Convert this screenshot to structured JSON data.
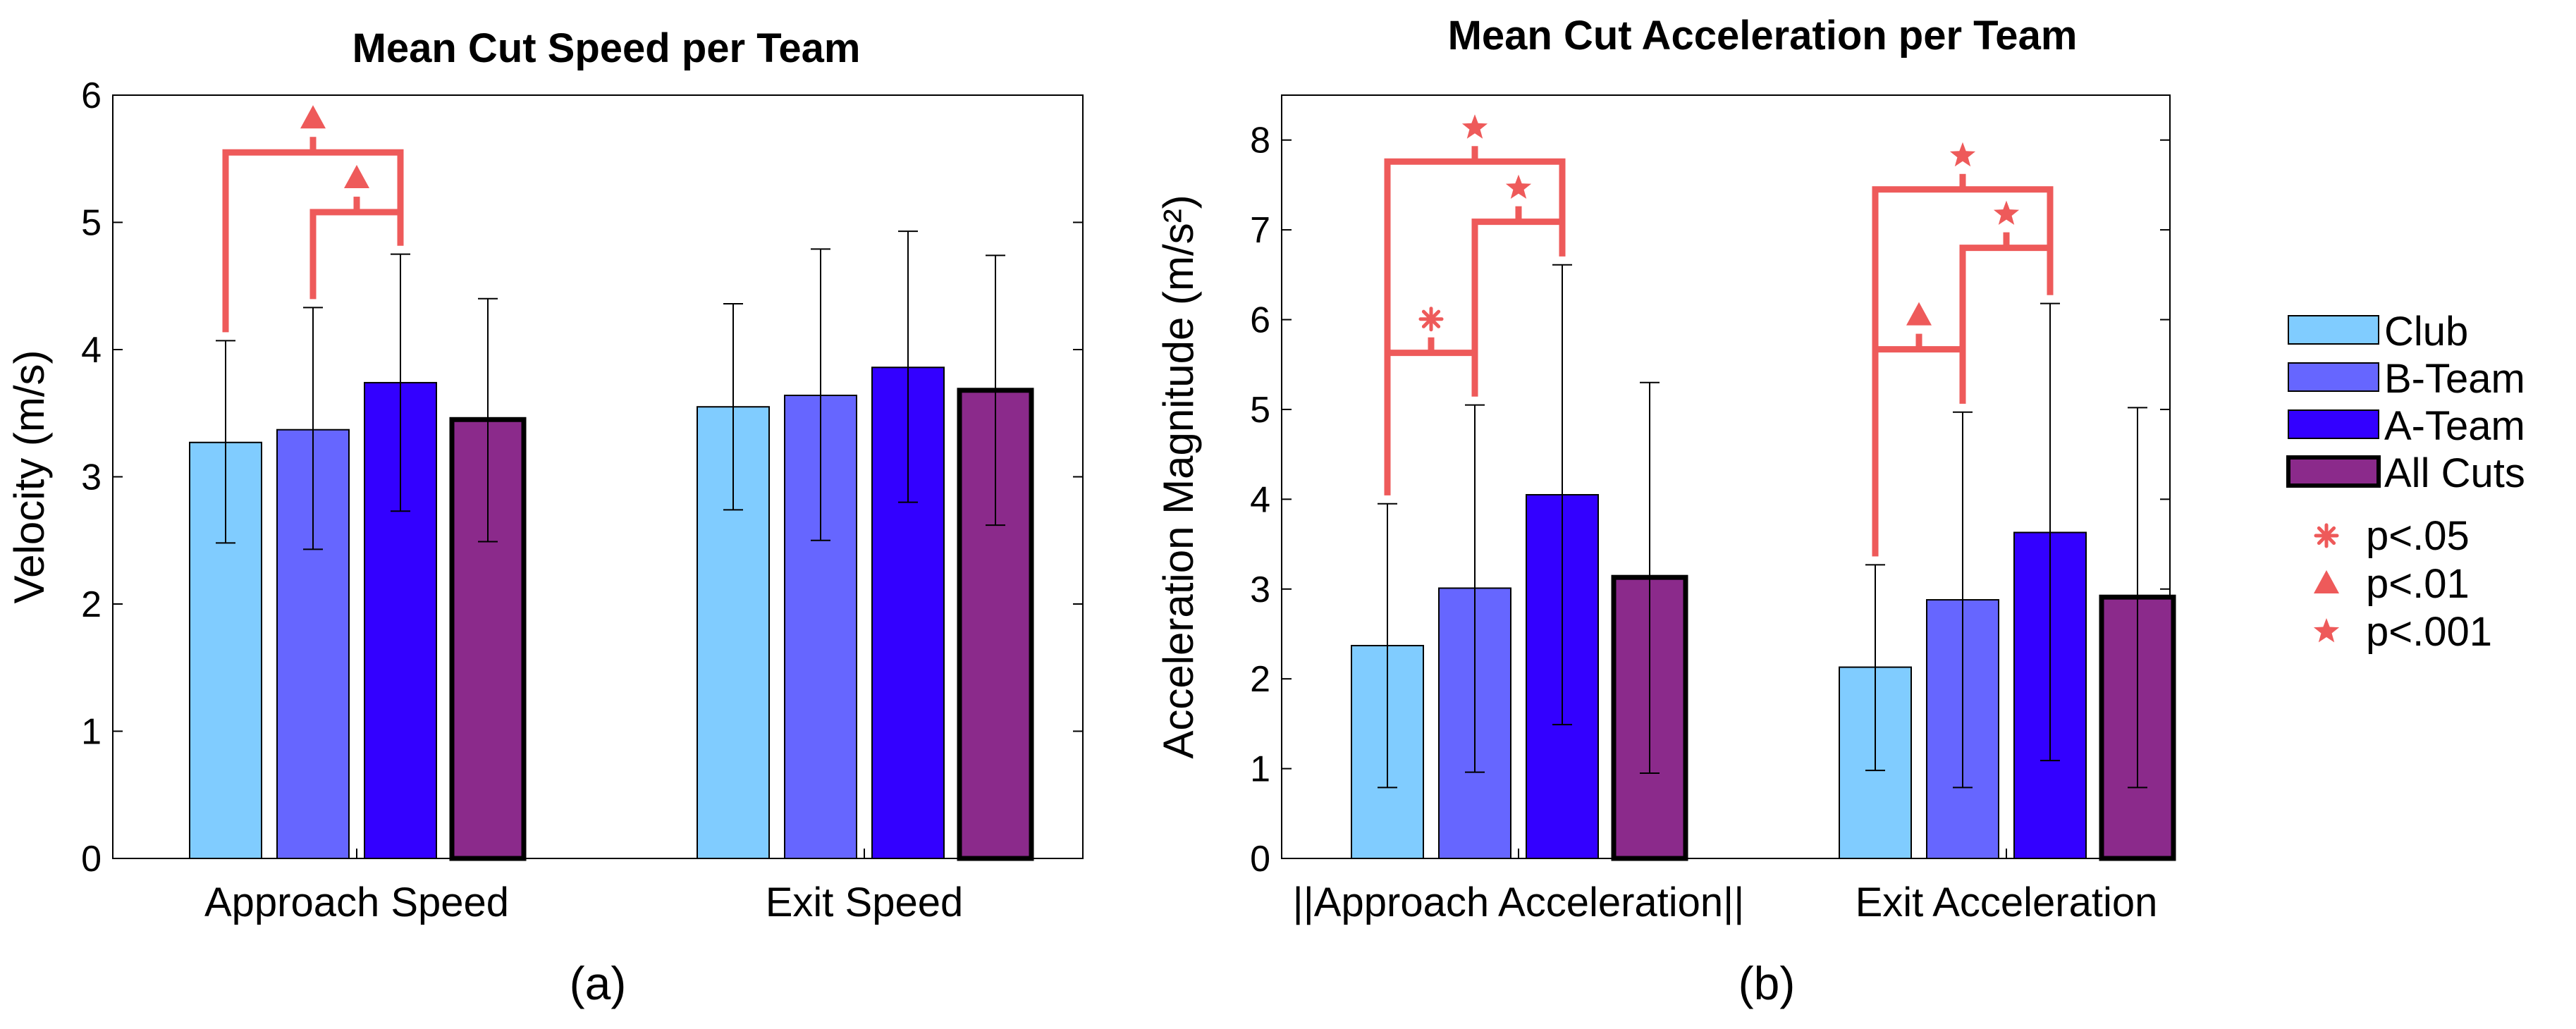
{
  "chart_data": [
    {
      "id": "a",
      "type": "bar",
      "title": "Mean Cut Speed per Team",
      "ylabel": "Velocity (m/s)",
      "xlabel": "",
      "ylim": [
        0,
        6
      ],
      "yticks": [
        0,
        1,
        2,
        3,
        4,
        5,
        6
      ],
      "ytick_labels": [
        "0",
        "1",
        "2",
        "3",
        "4",
        "5",
        "6"
      ],
      "subfigure_label": "(a)",
      "categories": [
        "Approach Speed",
        "Exit Speed"
      ],
      "series": [
        {
          "name": "Club",
          "color": "#80CCFF",
          "values": [
            3.27,
            3.55
          ],
          "err_low": [
            2.48,
            2.74
          ],
          "err_high": [
            4.07,
            4.36
          ]
        },
        {
          "name": "B-Team",
          "color": "#6666FF",
          "values": [
            3.37,
            3.64
          ],
          "err_low": [
            2.43,
            2.5
          ],
          "err_high": [
            4.33,
            4.79
          ]
        },
        {
          "name": "A-Team",
          "color": "#3300FF",
          "values": [
            3.74,
            3.86
          ],
          "err_low": [
            2.73,
            2.8
          ],
          "err_high": [
            4.75,
            4.93
          ]
        },
        {
          "name": "All Cuts",
          "color": "#8B2A8B",
          "values": [
            3.45,
            3.68
          ],
          "err_low": [
            2.49,
            2.62
          ],
          "err_high": [
            4.4,
            4.74
          ]
        }
      ],
      "significance": [
        {
          "category": 0,
          "from": 0,
          "to": 2,
          "symbol": "triangle",
          "level": 5.55
        },
        {
          "category": 0,
          "from": 1,
          "to": 2,
          "symbol": "triangle",
          "level": 5.08
        }
      ]
    },
    {
      "id": "b",
      "type": "bar",
      "title": "Mean Cut Acceleration per Team",
      "ylabel": "Acceleration Magnitude (m/s²)",
      "xlabel": "",
      "ylim": [
        0,
        8.5
      ],
      "yticks": [
        0,
        1,
        2,
        3,
        4,
        5,
        6,
        7,
        8
      ],
      "ytick_labels": [
        "0",
        "1",
        "2",
        "3",
        "4",
        "5",
        "6",
        "7",
        "8"
      ],
      "subfigure_label": "(b)",
      "categories": [
        "||Approach Acceleration||",
        "Exit Acceleration"
      ],
      "series": [
        {
          "name": "Club",
          "color": "#80CCFF",
          "values": [
            2.37,
            2.13
          ],
          "err_low": [
            0.79,
            0.98
          ],
          "err_high": [
            3.95,
            3.27
          ]
        },
        {
          "name": "B-Team",
          "color": "#6666FF",
          "values": [
            3.01,
            2.88
          ],
          "err_low": [
            0.96,
            0.79
          ],
          "err_high": [
            5.05,
            4.97
          ]
        },
        {
          "name": "A-Team",
          "color": "#3300FF",
          "values": [
            4.05,
            3.63
          ],
          "err_low": [
            1.49,
            1.09
          ],
          "err_high": [
            6.61,
            6.18
          ]
        },
        {
          "name": "All Cuts",
          "color": "#8B2A8B",
          "values": [
            3.13,
            2.91
          ],
          "err_low": [
            0.95,
            0.79
          ],
          "err_high": [
            5.3,
            5.02
          ]
        }
      ],
      "significance": [
        {
          "category": 0,
          "from": 0,
          "to": 1,
          "symbol": "asterisk",
          "level": 5.63
        },
        {
          "category": 0,
          "from": 0,
          "to": 2,
          "symbol": "star",
          "level": 7.76
        },
        {
          "category": 0,
          "from": 1,
          "to": 2,
          "symbol": "star",
          "level": 7.09
        },
        {
          "category": 1,
          "from": 0,
          "to": 1,
          "symbol": "triangle",
          "level": 5.67
        },
        {
          "category": 1,
          "from": 0,
          "to": 2,
          "symbol": "star",
          "level": 7.45
        },
        {
          "category": 1,
          "from": 1,
          "to": 2,
          "symbol": "star",
          "level": 6.8
        }
      ]
    }
  ],
  "legend": {
    "series": [
      "Club",
      "B-Team",
      "A-Team",
      "All Cuts"
    ],
    "significance": [
      {
        "symbol": "asterisk",
        "label": "p<.05"
      },
      {
        "symbol": "triangle",
        "label": "p<.01"
      },
      {
        "symbol": "star",
        "label": "p<.001"
      }
    ]
  },
  "colors": {
    "significance": "#EE5A5A",
    "axis": "#000000",
    "club": "#80CCFF",
    "b_team": "#6666FF",
    "a_team": "#3300FF",
    "all_cuts": "#8B2A8B"
  }
}
